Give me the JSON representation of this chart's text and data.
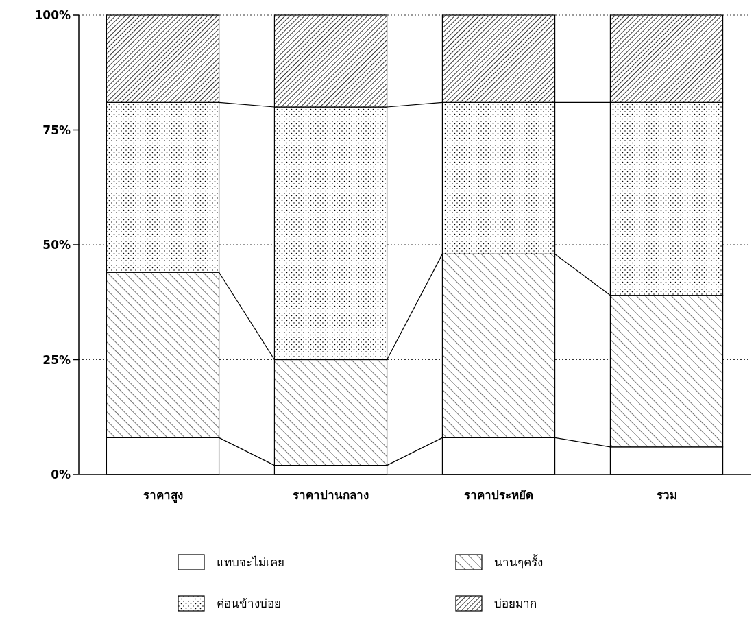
{
  "chart_data": {
    "type": "bar",
    "stacked": true,
    "categories": [
      "ราคาสูง",
      "ราคาปานกลาง",
      "ราคาประหยัด",
      "รวม"
    ],
    "series": [
      {
        "name": "แทบจะไม่เคย",
        "color": "#ffffff",
        "values": [
          8,
          2,
          8,
          6
        ]
      },
      {
        "name": "นานๆครั้ง",
        "color": "#000000",
        "values": [
          36,
          23,
          40,
          33
        ]
      },
      {
        "name": "ค่อนข้างบ่อย",
        "color": "#000000",
        "values": [
          37,
          55,
          33,
          42
        ]
      },
      {
        "name": "บ่อยมาก",
        "color": "#000000",
        "values": [
          19,
          20,
          19,
          19
        ]
      }
    ],
    "ylim": [
      0,
      100
    ],
    "yticks": [
      {
        "value": 0,
        "label": "0%"
      },
      {
        "value": 25,
        "label": "25%"
      },
      {
        "value": 50,
        "label": "50%"
      },
      {
        "value": 75,
        "label": "75%"
      },
      {
        "value": 100,
        "label": "100%"
      }
    ],
    "grid": "y",
    "legend": "bottom"
  }
}
